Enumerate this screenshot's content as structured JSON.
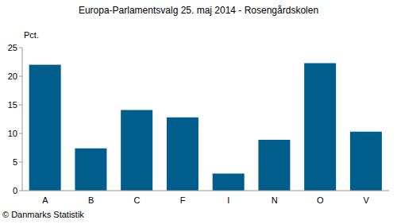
{
  "chart_data": {
    "type": "bar",
    "title": "Europa-Parlamentsvalg 25. maj 2014 - Rosengårdskolen",
    "ylabel": "Pct.",
    "annotation": "© Danmarks Statistik",
    "categories": [
      "A",
      "B",
      "C",
      "F",
      "I",
      "N",
      "O",
      "V"
    ],
    "values": [
      22.0,
      7.4,
      14.1,
      12.8,
      3.0,
      8.9,
      22.3,
      10.3
    ],
    "color": "#005e8c",
    "ylim": [
      0,
      25
    ],
    "yticks": [
      0,
      5,
      10,
      15,
      20,
      25
    ],
    "grid": false
  }
}
